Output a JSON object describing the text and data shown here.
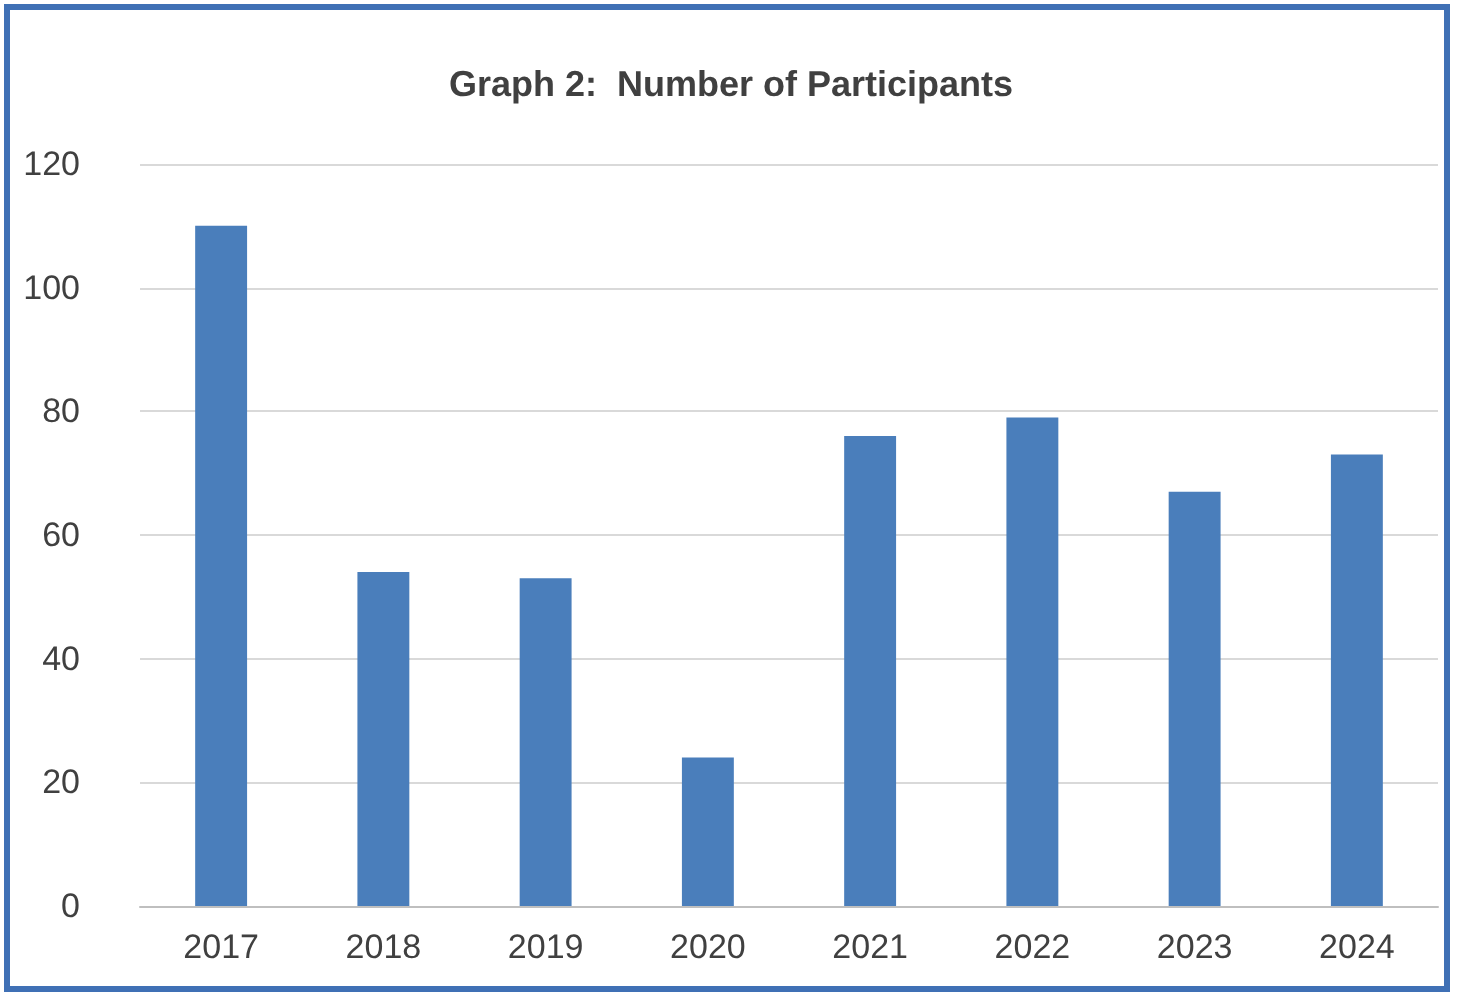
{
  "chart_data": {
    "type": "bar",
    "title": "Graph 2:  Number of Participants",
    "categories": [
      "2017",
      "2018",
      "2019",
      "2020",
      "2021",
      "2022",
      "2023",
      "2024"
    ],
    "values": [
      110,
      54,
      53,
      24,
      76,
      79,
      67,
      73
    ],
    "color": "#4a7ebb",
    "ylim": [
      0,
      120
    ],
    "yticks": [
      0,
      20,
      40,
      60,
      80,
      100,
      120
    ],
    "grid": "y"
  }
}
